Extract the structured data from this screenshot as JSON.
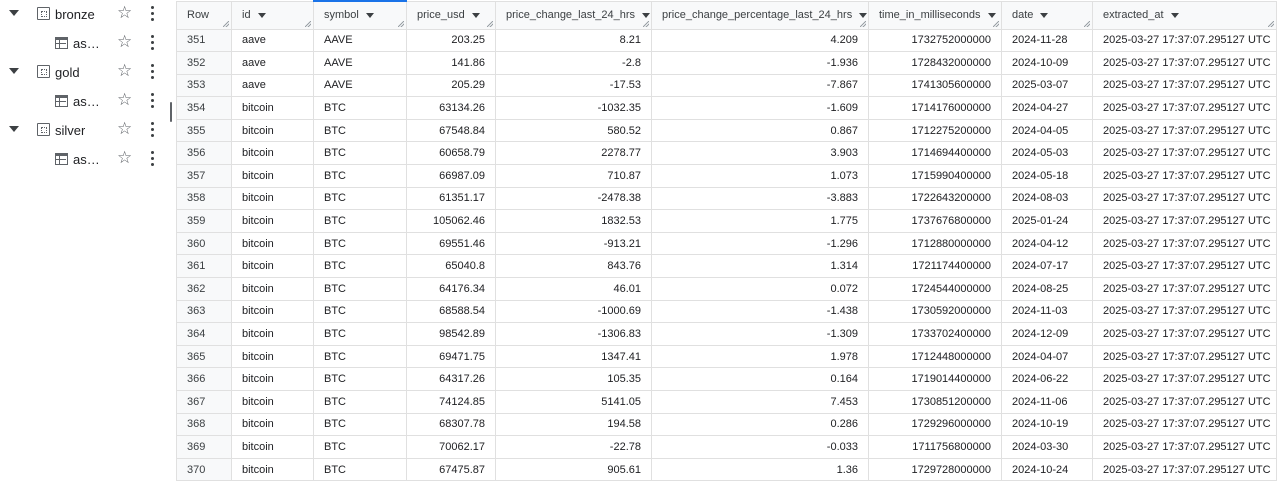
{
  "explorer": {
    "items": [
      {
        "kind": "dataset",
        "label": "bronze"
      },
      {
        "kind": "table",
        "label": "ass..."
      },
      {
        "kind": "dataset",
        "label": "gold"
      },
      {
        "kind": "table",
        "label": "ass..."
      },
      {
        "kind": "dataset",
        "label": "silver"
      },
      {
        "kind": "table",
        "label": "ass..."
      }
    ],
    "star_icon": "star-outline-icon",
    "more_icon": "more-vert-icon"
  },
  "grid": {
    "columns": [
      "Row",
      "id",
      "symbol",
      "price_usd",
      "price_change_last_24_hrs",
      "price_change_percentage_last_24_hrs",
      "time_in_milliseconds",
      "date",
      "extracted_at"
    ],
    "rows": [
      [
        "351",
        "aave",
        "AAVE",
        "203.25",
        "8.21",
        "4.209",
        "1732752000000",
        "2024-11-28",
        "2025-03-27 17:37:07.295127 UTC"
      ],
      [
        "352",
        "aave",
        "AAVE",
        "141.86",
        "-2.8",
        "-1.936",
        "1728432000000",
        "2024-10-09",
        "2025-03-27 17:37:07.295127 UTC"
      ],
      [
        "353",
        "aave",
        "AAVE",
        "205.29",
        "-17.53",
        "-7.867",
        "1741305600000",
        "2025-03-07",
        "2025-03-27 17:37:07.295127 UTC"
      ],
      [
        "354",
        "bitcoin",
        "BTC",
        "63134.26",
        "-1032.35",
        "-1.609",
        "1714176000000",
        "2024-04-27",
        "2025-03-27 17:37:07.295127 UTC"
      ],
      [
        "355",
        "bitcoin",
        "BTC",
        "67548.84",
        "580.52",
        "0.867",
        "1712275200000",
        "2024-04-05",
        "2025-03-27 17:37:07.295127 UTC"
      ],
      [
        "356",
        "bitcoin",
        "BTC",
        "60658.79",
        "2278.77",
        "3.903",
        "1714694400000",
        "2024-05-03",
        "2025-03-27 17:37:07.295127 UTC"
      ],
      [
        "357",
        "bitcoin",
        "BTC",
        "66987.09",
        "710.87",
        "1.073",
        "1715990400000",
        "2024-05-18",
        "2025-03-27 17:37:07.295127 UTC"
      ],
      [
        "358",
        "bitcoin",
        "BTC",
        "61351.17",
        "-2478.38",
        "-3.883",
        "1722643200000",
        "2024-08-03",
        "2025-03-27 17:37:07.295127 UTC"
      ],
      [
        "359",
        "bitcoin",
        "BTC",
        "105062.46",
        "1832.53",
        "1.775",
        "1737676800000",
        "2025-01-24",
        "2025-03-27 17:37:07.295127 UTC"
      ],
      [
        "360",
        "bitcoin",
        "BTC",
        "69551.46",
        "-913.21",
        "-1.296",
        "1712880000000",
        "2024-04-12",
        "2025-03-27 17:37:07.295127 UTC"
      ],
      [
        "361",
        "bitcoin",
        "BTC",
        "65040.8",
        "843.76",
        "1.314",
        "1721174400000",
        "2024-07-17",
        "2025-03-27 17:37:07.295127 UTC"
      ],
      [
        "362",
        "bitcoin",
        "BTC",
        "64176.34",
        "46.01",
        "0.072",
        "1724544000000",
        "2024-08-25",
        "2025-03-27 17:37:07.295127 UTC"
      ],
      [
        "363",
        "bitcoin",
        "BTC",
        "68588.54",
        "-1000.69",
        "-1.438",
        "1730592000000",
        "2024-11-03",
        "2025-03-27 17:37:07.295127 UTC"
      ],
      [
        "364",
        "bitcoin",
        "BTC",
        "98542.89",
        "-1306.83",
        "-1.309",
        "1733702400000",
        "2024-12-09",
        "2025-03-27 17:37:07.295127 UTC"
      ],
      [
        "365",
        "bitcoin",
        "BTC",
        "69471.75",
        "1347.41",
        "1.978",
        "1712448000000",
        "2024-04-07",
        "2025-03-27 17:37:07.295127 UTC"
      ],
      [
        "366",
        "bitcoin",
        "BTC",
        "64317.26",
        "105.35",
        "0.164",
        "1719014400000",
        "2024-06-22",
        "2025-03-27 17:37:07.295127 UTC"
      ],
      [
        "367",
        "bitcoin",
        "BTC",
        "74124.85",
        "5141.05",
        "7.453",
        "1730851200000",
        "2024-11-06",
        "2025-03-27 17:37:07.295127 UTC"
      ],
      [
        "368",
        "bitcoin",
        "BTC",
        "68307.78",
        "194.58",
        "0.286",
        "1729296000000",
        "2024-10-19",
        "2025-03-27 17:37:07.295127 UTC"
      ],
      [
        "369",
        "bitcoin",
        "BTC",
        "70062.17",
        "-22.78",
        "-0.033",
        "1711756800000",
        "2024-03-30",
        "2025-03-27 17:37:07.295127 UTC"
      ],
      [
        "370",
        "bitcoin",
        "BTC",
        "67475.87",
        "905.61",
        "1.36",
        "1729728000000",
        "2024-10-24",
        "2025-03-27 17:37:07.295127 UTC"
      ]
    ]
  },
  "colors": {
    "accent": "#1a73e8",
    "header_bg": "#f8f9fa",
    "border": "#e0e0e0"
  }
}
